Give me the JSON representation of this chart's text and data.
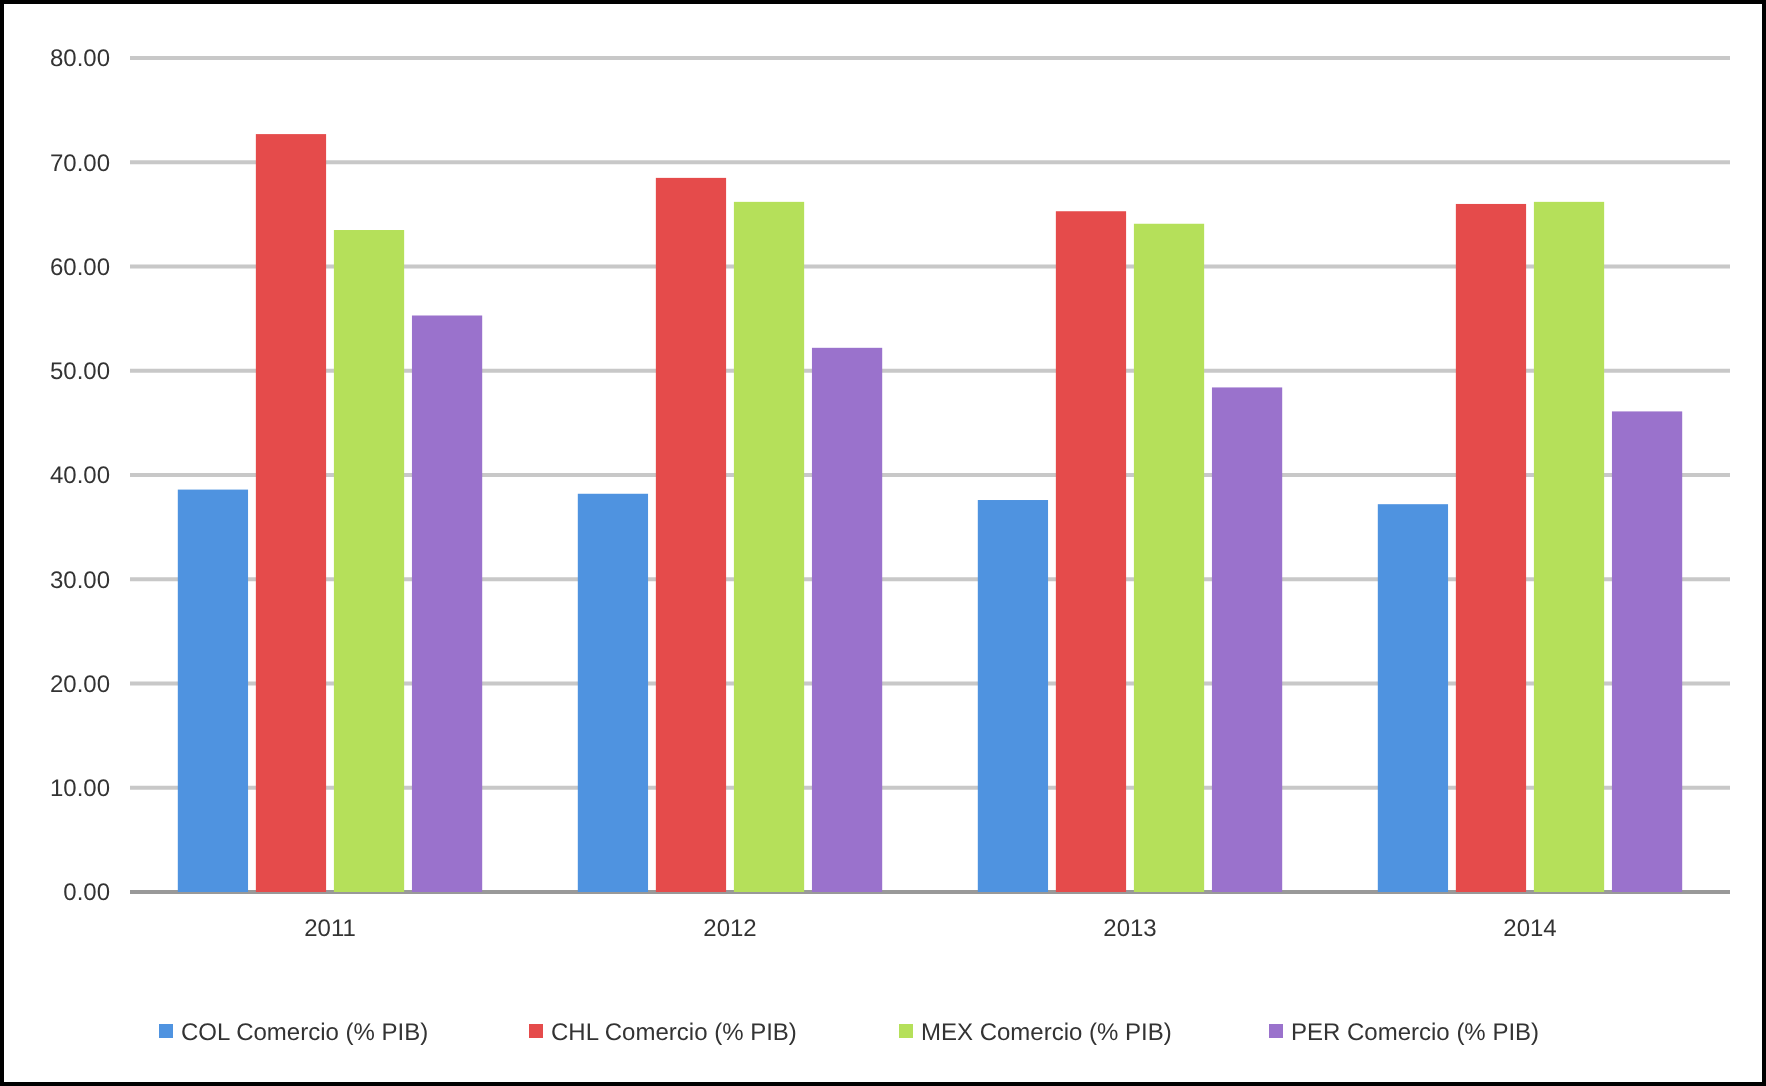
{
  "chart_data": {
    "type": "bar",
    "categories": [
      "2011",
      "2012",
      "2013",
      "2014"
    ],
    "series": [
      {
        "name": "COL Comercio (% PIB)",
        "color": "#4f93e0",
        "values": [
          38.6,
          38.2,
          37.6,
          37.2
        ]
      },
      {
        "name": "CHL Comercio (% PIB)",
        "color": "#e54b4b",
        "values": [
          72.7,
          68.5,
          65.3,
          66.0
        ]
      },
      {
        "name": "MEX Comercio (% PIB)",
        "color": "#b5e05a",
        "values": [
          63.5,
          66.2,
          64.1,
          66.2
        ]
      },
      {
        "name": "PER Comercio (% PIB)",
        "color": "#9a72cc",
        "values": [
          55.3,
          52.2,
          48.4,
          46.1
        ]
      }
    ],
    "ylim": [
      0,
      80
    ],
    "yticks": [
      {
        "value": 0,
        "label": "0.00"
      },
      {
        "value": 10,
        "label": "10.00"
      },
      {
        "value": 20,
        "label": "20.00"
      },
      {
        "value": 30,
        "label": "30.00"
      },
      {
        "value": 40,
        "label": "40.00"
      },
      {
        "value": 50,
        "label": "50.00"
      },
      {
        "value": 60,
        "label": "60.00"
      },
      {
        "value": 70,
        "label": "70.00"
      },
      {
        "value": 80,
        "label": "80.00"
      }
    ],
    "grid": "y",
    "legend": "bottom"
  }
}
